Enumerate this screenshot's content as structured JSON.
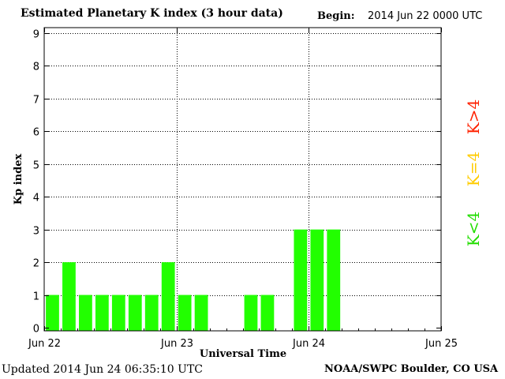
{
  "header": {
    "title": "Estimated Planetary K index (3 hour data)",
    "begin_label": "Begin:",
    "begin_value": "2014 Jun 22 0000 UTC"
  },
  "footer": {
    "updated": "Updated 2014 Jun 24 06:35:10 UTC",
    "credit": "NOAA/SWPC Boulder, CO USA"
  },
  "legend": {
    "high": {
      "label": "K>4",
      "color": "#ff2200"
    },
    "equal": {
      "label": "K=4",
      "color": "#ffcc00"
    },
    "low": {
      "label": "K<4",
      "color": "#22dd00"
    }
  },
  "chart_data": {
    "type": "bar",
    "title": "Estimated Planetary K index (3 hour data)",
    "xlabel": "Universal Time",
    "ylabel": "Kp index",
    "ylim": [
      0,
      9
    ],
    "yticks": [
      0,
      1,
      2,
      3,
      4,
      5,
      6,
      7,
      8,
      9
    ],
    "xlim": [
      "2014-06-22T00:00",
      "2014-06-25T00:00"
    ],
    "xtick_labels": [
      "Jun 22",
      "Jun 23",
      "Jun 24",
      "Jun 25"
    ],
    "grid": true,
    "bar_color": "#22ff00",
    "categories": [
      "2014-06-22T00:00",
      "2014-06-22T03:00",
      "2014-06-22T06:00",
      "2014-06-22T09:00",
      "2014-06-22T12:00",
      "2014-06-22T15:00",
      "2014-06-22T18:00",
      "2014-06-22T21:00",
      "2014-06-23T00:00",
      "2014-06-23T03:00",
      "2014-06-23T06:00",
      "2014-06-23T09:00",
      "2014-06-23T12:00",
      "2014-06-23T15:00",
      "2014-06-23T18:00",
      "2014-06-23T21:00",
      "2014-06-24T00:00",
      "2014-06-24T03:00"
    ],
    "values": [
      1,
      2,
      1,
      1,
      1,
      1,
      1,
      2,
      1,
      1,
      null,
      null,
      1,
      1,
      null,
      3,
      3,
      3
    ]
  }
}
